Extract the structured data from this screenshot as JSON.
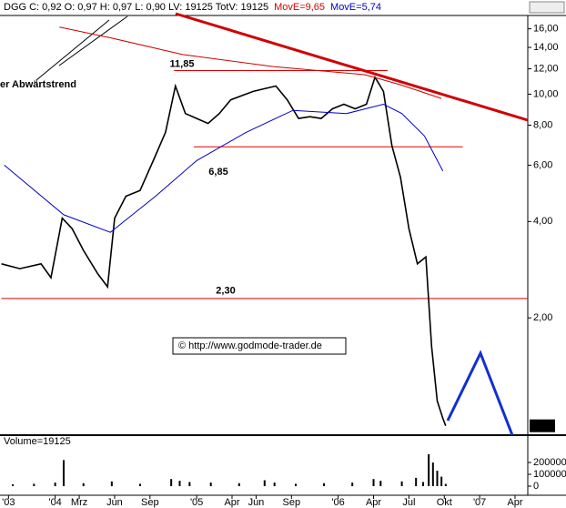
{
  "header": {
    "ohlc": "DGG C: 0,92 O: 0,97 H: 0,97 L: 0,90 LV: 19125 TotV: 19125",
    "ma_long": "MovE=9,65",
    "ma_short": "MovE=5,74"
  },
  "chart_data": [
    {
      "type": "line",
      "log_scale": true,
      "xlim": [
        2003.61,
        2007.34
      ],
      "ylim": [
        0.86,
        17.5
      ],
      "yticks": [
        {
          "value": 2,
          "label": "2,00"
        },
        {
          "value": 4,
          "label": "4,00"
        },
        {
          "value": 6,
          "label": "6,00"
        },
        {
          "value": 8,
          "label": "8,00"
        },
        {
          "value": 10,
          "label": "10,00"
        },
        {
          "value": 12,
          "label": "12,00"
        },
        {
          "value": 14,
          "label": "14,00"
        },
        {
          "value": 16,
          "label": "16,00"
        }
      ],
      "last_price": {
        "value": 0.92,
        "label": "0,92"
      },
      "series": [
        {
          "name": "DGG",
          "color": "#000000",
          "x": [
            2003.62,
            2003.75,
            2003.9,
            2003.97,
            2004.05,
            2004.12,
            2004.2,
            2004.3,
            2004.37,
            2004.42,
            2004.5,
            2004.6,
            2004.7,
            2004.78,
            2004.85,
            2004.92,
            2005.0,
            2005.08,
            2005.16,
            2005.24,
            2005.32,
            2005.4,
            2005.48,
            2005.56,
            2005.64,
            2005.72,
            2005.8,
            2005.88,
            2005.96,
            2006.04,
            2006.12,
            2006.2,
            2006.26,
            2006.32,
            2006.38,
            2006.44,
            2006.5,
            2006.56,
            2006.62,
            2006.66,
            2006.7,
            2006.74,
            2006.76
          ],
          "values": [
            2.95,
            2.85,
            2.95,
            2.67,
            4.1,
            3.8,
            3.25,
            2.75,
            2.5,
            4.1,
            4.8,
            5.0,
            6.3,
            7.6,
            10.6,
            8.7,
            8.4,
            8.1,
            8.7,
            9.6,
            9.9,
            10.2,
            10.4,
            10.6,
            9.6,
            8.4,
            8.5,
            8.4,
            9.0,
            9.3,
            9.0,
            9.3,
            11.3,
            10.2,
            6.9,
            5.5,
            3.8,
            2.95,
            3.1,
            1.63,
            1.1,
            0.97,
            0.92
          ]
        },
        {
          "name": "MovE=9,65",
          "color": "#d00000",
          "x": [
            2004.03,
            2004.39,
            2004.9,
            2005.54,
            2006.19,
            2006.44,
            2006.73
          ],
          "values": [
            16.2,
            15.0,
            13.3,
            12.2,
            11.5,
            10.7,
            9.7
          ]
        },
        {
          "name": "MovE=5,74",
          "color": "#0000c8",
          "x": [
            2003.64,
            2004.06,
            2004.39,
            2004.71,
            2005.0,
            2005.35,
            2005.68,
            2006.06,
            2006.32,
            2006.45,
            2006.61,
            2006.74
          ],
          "values": [
            6.0,
            4.2,
            3.7,
            4.8,
            6.2,
            7.6,
            8.9,
            8.7,
            9.3,
            8.7,
            7.4,
            5.75
          ]
        }
      ],
      "levels": [
        {
          "value": 11.85,
          "label": "11,85",
          "from": 2004.84,
          "to": 2006.35
        },
        {
          "value": 6.85,
          "label": "6,85",
          "from": 2004.98,
          "to": 2006.88
        },
        {
          "value": 2.3,
          "label": "2,30",
          "from": 2003.62,
          "to": 2007.34
        }
      ],
      "annotations": {
        "trend": "er Abwärtstrend",
        "copyright": "© http://www.godmode-trader.de"
      }
    },
    {
      "type": "bar",
      "title": "Volume=19125",
      "xlim": [
        2003.61,
        2007.34
      ],
      "ylim": [
        0,
        400000
      ],
      "yticks": [
        0,
        100000,
        200000
      ],
      "xticks": [
        {
          "value": 2003.67,
          "label": "'03"
        },
        {
          "value": 2004.0,
          "label": "'04"
        },
        {
          "value": 2004.17,
          "label": "Mrz"
        },
        {
          "value": 2004.42,
          "label": "Jun"
        },
        {
          "value": 2004.67,
          "label": "Sep"
        },
        {
          "value": 2005.0,
          "label": "'05"
        },
        {
          "value": 2005.25,
          "label": "Apr"
        },
        {
          "value": 2005.42,
          "label": "Jun"
        },
        {
          "value": 2005.67,
          "label": "Sep"
        },
        {
          "value": 2006.0,
          "label": "'06"
        },
        {
          "value": 2006.25,
          "label": "Apr"
        },
        {
          "value": 2006.5,
          "label": "Jul"
        },
        {
          "value": 2006.75,
          "label": "Okt"
        },
        {
          "value": 2007.0,
          "label": "'07"
        },
        {
          "value": 2007.25,
          "label": "Apr"
        }
      ],
      "color": "#000000",
      "x": [
        2003.7,
        2003.85,
        2004.0,
        2004.06,
        2004.2,
        2004.4,
        2004.6,
        2004.82,
        2004.88,
        2004.95,
        2005.1,
        2005.3,
        2005.48,
        2005.55,
        2005.7,
        2005.9,
        2006.1,
        2006.25,
        2006.3,
        2006.45,
        2006.55,
        2006.6,
        2006.64,
        2006.67,
        2006.7,
        2006.73,
        2006.76
      ],
      "values": [
        15000,
        20000,
        30000,
        220000,
        25000,
        40000,
        20000,
        60000,
        45000,
        35000,
        30000,
        25000,
        50000,
        30000,
        20000,
        25000,
        30000,
        60000,
        45000,
        40000,
        70000,
        35000,
        270000,
        200000,
        130000,
        80000,
        19125
      ]
    }
  ]
}
